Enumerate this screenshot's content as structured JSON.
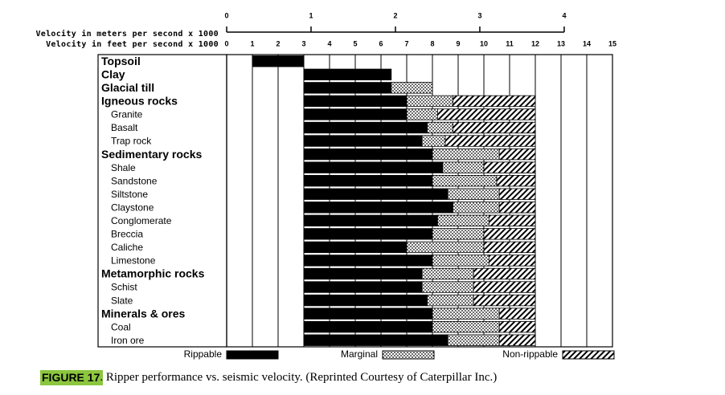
{
  "chart_data": {
    "type": "range_bar",
    "orientation": "horizontal",
    "xlabel": "Velocity in feet per second x 1000",
    "xlim": [
      0,
      15
    ],
    "xticks": [
      0,
      1,
      2,
      3,
      4,
      5,
      6,
      7,
      8,
      9,
      10,
      11,
      12,
      13,
      14,
      15
    ],
    "x2label": "Velocity in meters per second x 1000",
    "x2lim": [
      0,
      4.572
    ],
    "x2ticks": [
      0,
      1,
      2,
      3,
      4
    ],
    "grid": true,
    "legend": "bottom",
    "categories": [
      "Topsoil",
      "Clay",
      "Glacial till",
      "Igneous rocks",
      "Granite",
      "Basalt",
      "Trap rock",
      "Sedimentary rocks",
      "Shale",
      "Sandstone",
      "Siltstone",
      "Claystone",
      "Conglomerate",
      "Breccia",
      "Caliche",
      "Limestone",
      "Metamorphic rocks",
      "Schist",
      "Slate",
      "Minerals & ores",
      "Coal",
      "Iron ore"
    ],
    "category_style": [
      "group",
      "group",
      "group",
      "group",
      "item",
      "item",
      "item",
      "group",
      "item",
      "item",
      "item",
      "item",
      "item",
      "item",
      "item",
      "item",
      "group",
      "item",
      "item",
      "group",
      "item",
      "item"
    ],
    "series": [
      {
        "name": "Rippable",
        "color": "#000000",
        "pattern": "solid",
        "values": [
          [
            1,
            3
          ],
          [
            3,
            6.4
          ],
          [
            3,
            6.4
          ],
          [
            3,
            7
          ],
          [
            3,
            7
          ],
          [
            3,
            7.8
          ],
          [
            3,
            7.6
          ],
          [
            3,
            8
          ],
          [
            3,
            8.4
          ],
          [
            3,
            8
          ],
          [
            3,
            8.6
          ],
          [
            3,
            8.8
          ],
          [
            3,
            8.2
          ],
          [
            3,
            8
          ],
          [
            3,
            7
          ],
          [
            3,
            8
          ],
          [
            3,
            7.6
          ],
          [
            3,
            7.6
          ],
          [
            3,
            7.8
          ],
          [
            3,
            8
          ],
          [
            3,
            8
          ],
          [
            3,
            8.6
          ]
        ]
      },
      {
        "name": "Marginal",
        "color": "#000000",
        "pattern": "dots",
        "values": [
          null,
          null,
          [
            6.4,
            8
          ],
          [
            7,
            8.8
          ],
          [
            7,
            8.2
          ],
          [
            7.8,
            8.8
          ],
          [
            7.6,
            8.5
          ],
          [
            8,
            10.6
          ],
          [
            8.4,
            10
          ],
          [
            8,
            10.5
          ],
          [
            8.6,
            10.6
          ],
          [
            8.8,
            10.6
          ],
          [
            8.2,
            10.2
          ],
          [
            8,
            10
          ],
          [
            7,
            10
          ],
          [
            8,
            10.2
          ],
          [
            7.6,
            9.6
          ],
          [
            7.6,
            9.6
          ],
          [
            7.8,
            9.6
          ],
          [
            8,
            10.6
          ],
          [
            8,
            10.6
          ],
          [
            8.6,
            10.6
          ]
        ]
      },
      {
        "name": "Non-rippable",
        "color": "#000000",
        "pattern": "hatch",
        "values": [
          null,
          null,
          null,
          [
            8.8,
            12
          ],
          [
            8.2,
            12
          ],
          [
            8.8,
            12
          ],
          [
            8.5,
            12
          ],
          [
            10.6,
            12
          ],
          [
            10,
            12
          ],
          [
            10.5,
            12
          ],
          [
            10.6,
            12
          ],
          [
            10.6,
            12
          ],
          [
            10.2,
            12
          ],
          [
            10,
            12
          ],
          [
            10,
            12
          ],
          [
            10.2,
            12
          ],
          [
            9.6,
            12
          ],
          [
            9.6,
            12
          ],
          [
            9.6,
            12
          ],
          [
            10.6,
            12
          ],
          [
            10.6,
            12
          ],
          [
            10.6,
            12
          ]
        ]
      }
    ],
    "caption_label": "FIGURE 17",
    "caption": ". Ripper performance vs. seismic velocity. (Reprinted Courtesy of Caterpillar Inc.)"
  }
}
